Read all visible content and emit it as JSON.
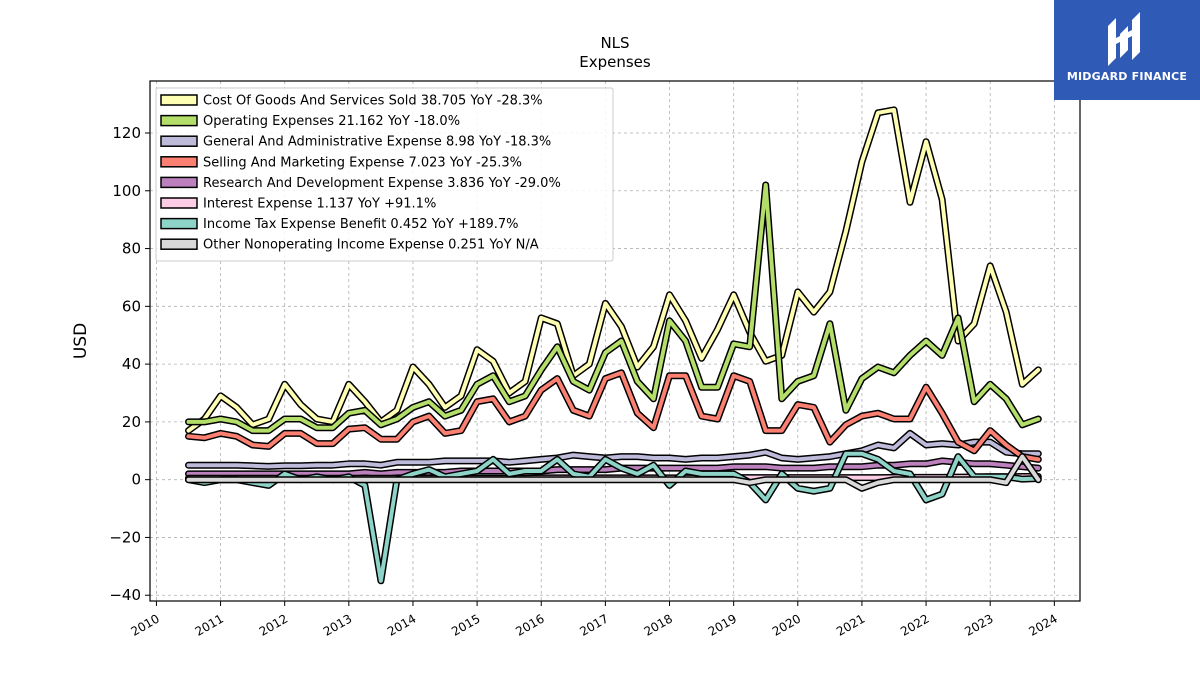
{
  "logo": {
    "text": "MIDGARD FINANCE"
  },
  "chart_data": {
    "type": "line",
    "title": "NLS",
    "subtitle": "Expenses",
    "xlabel": "",
    "ylabel": "USD",
    "xlim": [
      2009.9,
      2024.4
    ],
    "ylim": [
      -42,
      138
    ],
    "xticks": [
      2010,
      2011,
      2012,
      2013,
      2014,
      2015,
      2016,
      2017,
      2018,
      2019,
      2020,
      2021,
      2022,
      2023,
      2024
    ],
    "yticks": [
      -40,
      -20,
      0,
      20,
      40,
      60,
      80,
      100,
      120
    ],
    "yticklabels": [
      "−40",
      "−20",
      "0",
      "20",
      "40",
      "60",
      "80",
      "100",
      "120"
    ],
    "grid": true,
    "legend_position": "top-left",
    "x": [
      2010.5,
      2010.75,
      2011.0,
      2011.25,
      2011.5,
      2011.75,
      2012.0,
      2012.25,
      2012.5,
      2012.75,
      2013.0,
      2013.25,
      2013.5,
      2013.75,
      2014.0,
      2014.25,
      2014.5,
      2014.75,
      2015.0,
      2015.25,
      2015.5,
      2015.75,
      2016.0,
      2016.25,
      2016.5,
      2016.75,
      2017.0,
      2017.25,
      2017.5,
      2017.75,
      2018.0,
      2018.25,
      2018.5,
      2018.75,
      2019.0,
      2019.25,
      2019.5,
      2019.75,
      2020.0,
      2020.25,
      2020.5,
      2020.75,
      2021.0,
      2021.25,
      2021.5,
      2021.75,
      2022.0,
      2022.25,
      2022.5,
      2022.75,
      2023.0,
      2023.25,
      2023.5,
      2023.75
    ],
    "series": [
      {
        "name": "Cost Of Goods And Services Sold  38.705 YoY -28.3%",
        "color": "#ffffb3",
        "values": [
          17,
          21,
          29,
          25,
          19,
          21,
          33,
          26,
          21,
          20,
          33,
          27,
          20,
          24,
          39,
          33,
          25,
          29,
          45,
          41,
          30,
          34,
          56,
          54,
          36,
          40,
          61,
          53,
          39,
          46,
          64,
          55,
          42,
          52,
          64,
          51,
          41,
          43,
          65,
          58,
          65,
          86,
          110,
          127,
          128,
          96,
          117,
          97,
          48,
          54,
          74,
          58,
          33,
          38
        ]
      },
      {
        "name": "Operating Expenses  21.162 YoY -18.0%",
        "color": "#b3de69",
        "values": [
          20,
          20,
          21,
          20,
          17,
          17,
          21,
          21,
          18,
          18,
          23,
          24,
          19,
          21,
          25,
          27,
          22,
          24,
          33,
          36,
          27,
          29,
          38,
          46,
          34,
          31,
          44,
          48,
          34,
          28,
          55,
          48,
          32,
          32,
          47,
          46,
          102,
          28,
          34,
          36,
          54,
          24,
          35,
          39,
          37,
          43,
          48,
          43,
          56,
          27,
          33,
          28,
          19,
          21
        ]
      },
      {
        "name": "General And Administrative Expense  8.98 YoY -18.3%",
        "color": "#bebada",
        "values": [
          5,
          5,
          5,
          5,
          4.8,
          4.6,
          4.8,
          4.8,
          5,
          5,
          5.5,
          5.5,
          5,
          6,
          6,
          6,
          6.5,
          6.5,
          6.5,
          6.5,
          6,
          6.5,
          7,
          7.5,
          8.5,
          8,
          7.5,
          8,
          8,
          7.5,
          7.5,
          7,
          7.5,
          7.5,
          8,
          8.5,
          9.5,
          7.5,
          7,
          7.5,
          8,
          9,
          10,
          12,
          11,
          16,
          12,
          12.5,
          12,
          13,
          13,
          9.5,
          9,
          9
        ]
      },
      {
        "name": "Selling And Marketing Expense  7.023 YoY -25.3%",
        "color": "#fb8072",
        "values": [
          15,
          14.5,
          16,
          15,
          12,
          11.5,
          16,
          16,
          12.5,
          12.5,
          17.5,
          18,
          14,
          14,
          20,
          22,
          16,
          17,
          27,
          28,
          20,
          22,
          31,
          35,
          24,
          22,
          35,
          37,
          23,
          18,
          36,
          36,
          22,
          21,
          36,
          34,
          17,
          17,
          26,
          25,
          13,
          19,
          22,
          23,
          21,
          21,
          32,
          23,
          13,
          10,
          17,
          12,
          8,
          7
        ]
      },
      {
        "name": "Research And Development Expense  3.836 YoY -29.0%",
        "color": "#bc80bd",
        "values": [
          2,
          2,
          2,
          2,
          2,
          2,
          2,
          2,
          2,
          2,
          2,
          2.5,
          2,
          2.5,
          2.5,
          2.5,
          2.5,
          3,
          3,
          3,
          3,
          3,
          3,
          3.5,
          3.5,
          3.5,
          3.5,
          4,
          4,
          4,
          4,
          4,
          4,
          4,
          4.5,
          4.5,
          4.5,
          4,
          4,
          4,
          4.5,
          4.5,
          4.5,
          5,
          5,
          5.5,
          5.5,
          6.5,
          6,
          5.5,
          5.5,
          5,
          4.5,
          4
        ]
      },
      {
        "name": "Interest Expense  1.137 YoY +91.1%",
        "color": "#fccde5",
        "values": [
          0.5,
          0.5,
          0.5,
          0.5,
          0.5,
          0.5,
          0.5,
          0.5,
          0.5,
          0.5,
          0.5,
          0.5,
          0.5,
          0.5,
          0.5,
          0.5,
          0.5,
          0.5,
          0.5,
          0.5,
          0.5,
          0.5,
          0.6,
          0.6,
          0.6,
          0.6,
          0.6,
          0.6,
          0.6,
          0.6,
          0.6,
          0.6,
          0.6,
          0.7,
          0.7,
          0.7,
          0.7,
          0.7,
          0.7,
          0.7,
          0.7,
          0.7,
          0.7,
          0.7,
          0.8,
          0.8,
          0.8,
          0.8,
          0.9,
          0.9,
          1,
          1,
          1.1,
          1.1
        ]
      },
      {
        "name": "Income Tax Expense Benefit  0.452 YoY +189.7%",
        "color": "#8dd3c7",
        "values": [
          0,
          -1,
          0,
          0,
          -1,
          -2,
          2,
          0,
          1,
          0,
          1,
          -2,
          -35,
          0,
          2,
          3.5,
          1,
          2,
          3,
          7,
          2,
          3,
          3,
          7,
          2,
          1,
          7,
          4,
          2,
          5,
          -2,
          3,
          2,
          2,
          2,
          -1,
          -7,
          2,
          -3,
          -4,
          -3,
          9,
          9,
          7,
          3,
          2,
          -7,
          -5,
          8,
          1,
          1,
          1,
          0.2,
          0.4
        ]
      },
      {
        "name": "Other Nonoperating Income Expense  0.251 YoY N/A",
        "color": "#d9d9d9",
        "values": [
          0,
          0,
          0,
          0,
          0,
          0,
          0,
          0,
          0,
          0,
          0,
          0,
          0,
          0,
          0,
          0,
          0,
          0,
          0,
          0,
          0,
          0,
          0,
          0,
          0,
          0,
          0,
          0,
          0,
          0,
          0,
          0,
          0,
          0,
          0,
          -1,
          0,
          0,
          0,
          0,
          0,
          0,
          -3,
          -1,
          0,
          0,
          0,
          0,
          0,
          0,
          0,
          -1,
          8,
          0
        ]
      }
    ]
  }
}
